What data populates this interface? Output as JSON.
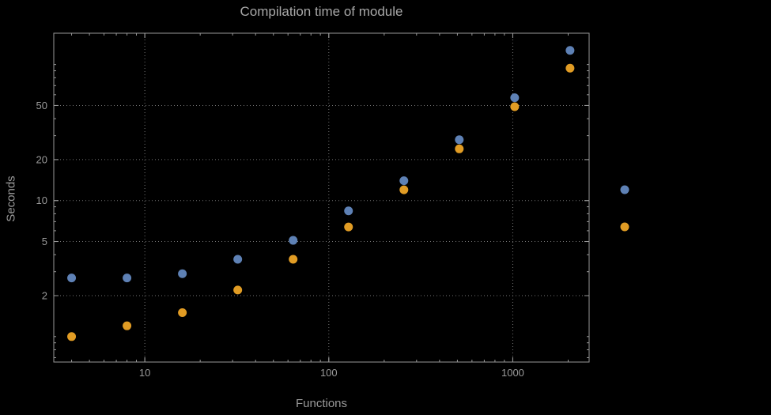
{
  "chart_data": {
    "type": "scatter",
    "title": "Compilation time of module",
    "xlabel": "Functions",
    "ylabel": "Seconds",
    "x_scale": "log",
    "y_scale": "log",
    "grid": true,
    "grid_style": "dotted",
    "x_range": [
      3.2,
      2600
    ],
    "y_range": [
      0.65,
      170
    ],
    "x": [
      4,
      8,
      16,
      32,
      64,
      128,
      256,
      512,
      1024,
      2048
    ],
    "series": [
      {
        "name": "series-1",
        "color": "#5e81b5",
        "values": [
          2.7,
          2.7,
          2.9,
          3.7,
          5.1,
          8.4,
          14,
          28,
          57,
          127
        ]
      },
      {
        "name": "series-2",
        "color": "#e19c24",
        "values": [
          1.0,
          1.2,
          1.5,
          2.2,
          3.7,
          6.4,
          12,
          24,
          49,
          94
        ]
      }
    ],
    "x_ticks": [
      {
        "value": 10,
        "label": "10"
      },
      {
        "value": 100,
        "label": "100"
      },
      {
        "value": 1000,
        "label": "1000"
      }
    ],
    "y_ticks": [
      {
        "value": 2,
        "label": "2"
      },
      {
        "value": 5,
        "label": "5"
      },
      {
        "value": 10,
        "label": "10"
      },
      {
        "value": 20,
        "label": "20"
      },
      {
        "value": 50,
        "label": "50"
      }
    ],
    "legend_markers": [
      {
        "name": "legend-marker-series-1",
        "color": "#5e81b5"
      },
      {
        "name": "legend-marker-series-2",
        "color": "#e19c24"
      }
    ]
  },
  "style_colors": {
    "background": "#000000",
    "frame": "#989898",
    "grid": "#757575",
    "tick_label": "#9a9a9a",
    "title": "#a8a8a8",
    "axis_label": "#9a9a9a"
  }
}
